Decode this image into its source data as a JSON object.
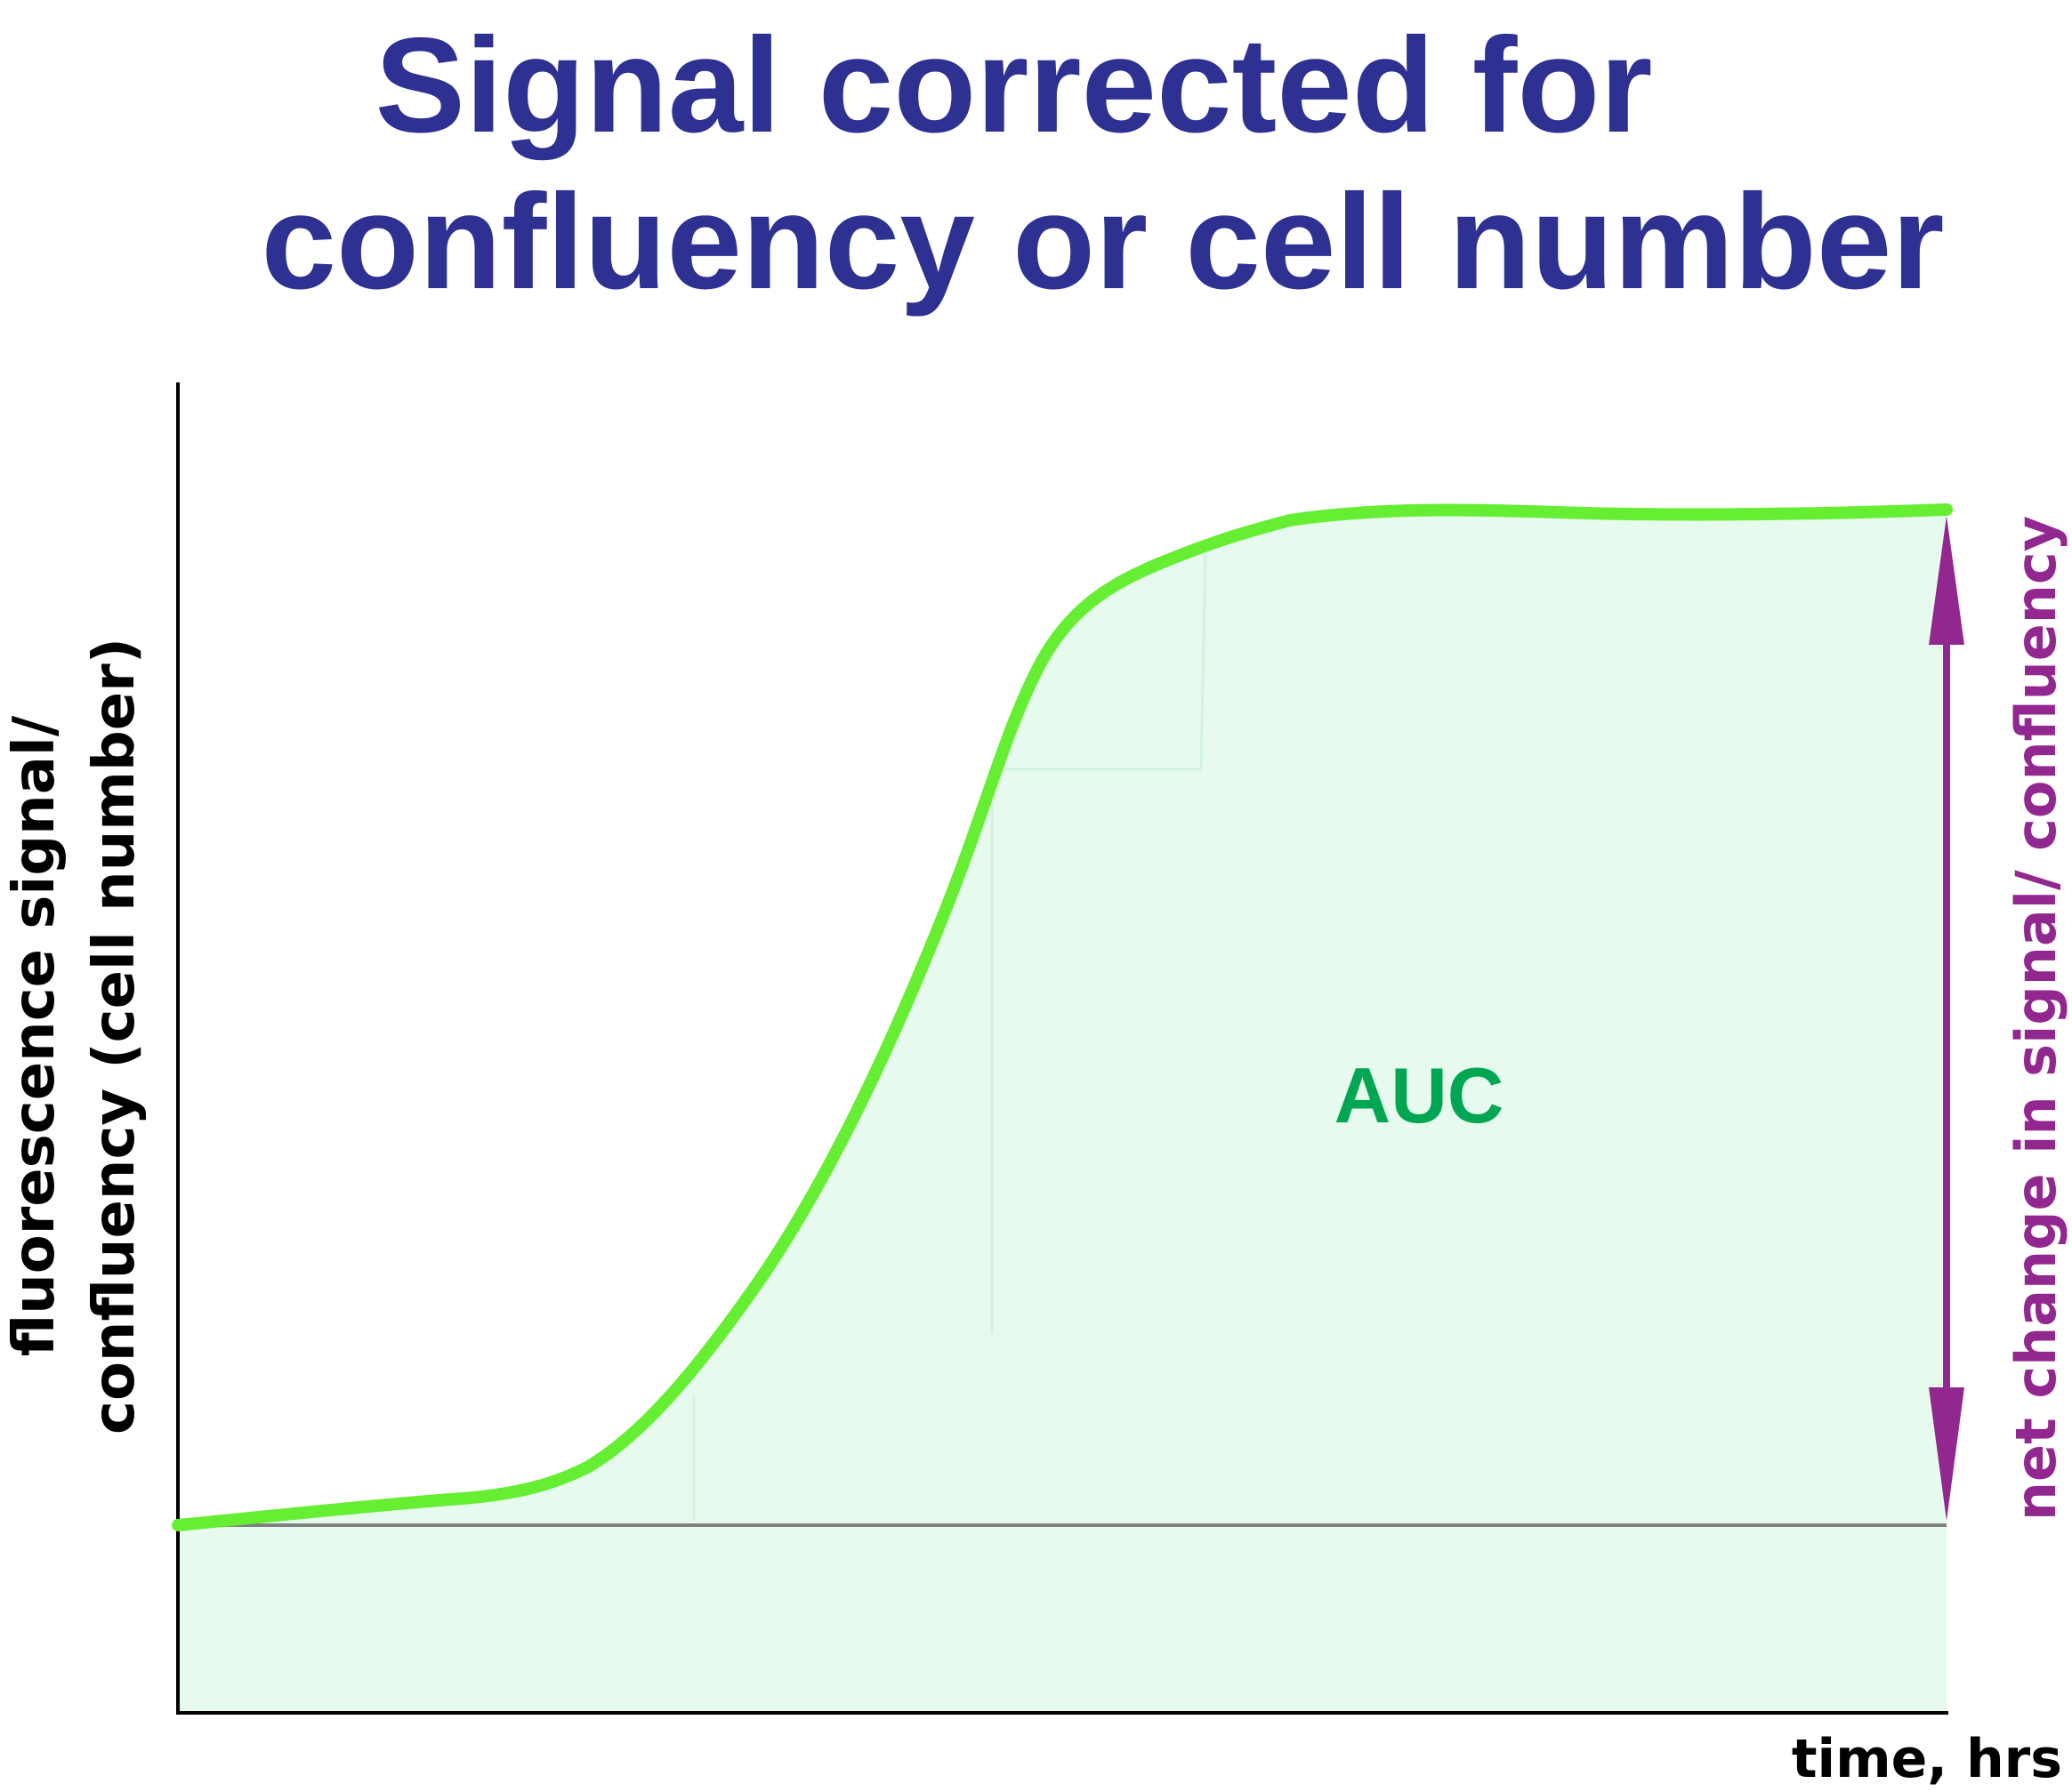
{
  "title": {
    "line1": "Signal corrected for",
    "line2": "confluency or cell number"
  },
  "y_axis_label": {
    "line1": "fluorescence signal/",
    "line2": "confluency (cell number)"
  },
  "x_axis_label": "time, hrs",
  "area_label": "AUC",
  "arrow_label": "net change in signal/ confluency",
  "colors": {
    "title": "#2e3192",
    "curve": "#66ee33",
    "area_fill": "#e6fbee",
    "auc_text": "#00a651",
    "arrow": "#92278f",
    "axis": "#000000",
    "baseline": "#808080"
  }
}
